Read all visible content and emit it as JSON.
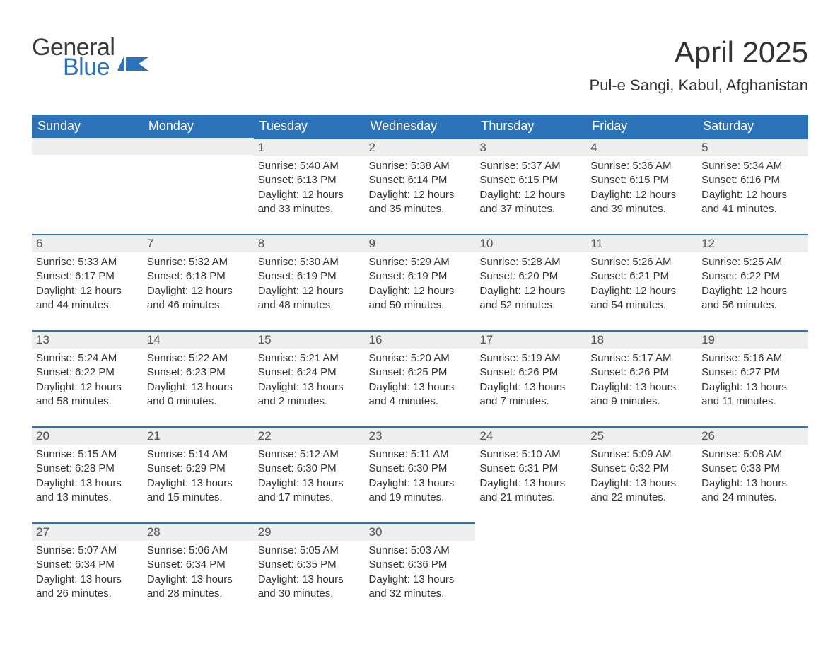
{
  "logo": {
    "text1": "General",
    "text2": "Blue",
    "accent_color": "#2b72b8"
  },
  "title": "April 2025",
  "location": "Pul-e Sangi, Kabul, Afghanistan",
  "colors": {
    "header_bg": "#2b72b8",
    "header_text": "#ffffff",
    "daynum_bg": "#eeeeee",
    "daynum_border": "#2b72b8",
    "body_text": "#333333"
  },
  "day_headers": [
    "Sunday",
    "Monday",
    "Tuesday",
    "Wednesday",
    "Thursday",
    "Friday",
    "Saturday"
  ],
  "weeks": [
    [
      {
        "num": "",
        "sunrise": "",
        "sunset": "",
        "daylight1": "",
        "daylight2": ""
      },
      {
        "num": "",
        "sunrise": "",
        "sunset": "",
        "daylight1": "",
        "daylight2": ""
      },
      {
        "num": "1",
        "sunrise": "Sunrise: 5:40 AM",
        "sunset": "Sunset: 6:13 PM",
        "daylight1": "Daylight: 12 hours",
        "daylight2": "and 33 minutes."
      },
      {
        "num": "2",
        "sunrise": "Sunrise: 5:38 AM",
        "sunset": "Sunset: 6:14 PM",
        "daylight1": "Daylight: 12 hours",
        "daylight2": "and 35 minutes."
      },
      {
        "num": "3",
        "sunrise": "Sunrise: 5:37 AM",
        "sunset": "Sunset: 6:15 PM",
        "daylight1": "Daylight: 12 hours",
        "daylight2": "and 37 minutes."
      },
      {
        "num": "4",
        "sunrise": "Sunrise: 5:36 AM",
        "sunset": "Sunset: 6:15 PM",
        "daylight1": "Daylight: 12 hours",
        "daylight2": "and 39 minutes."
      },
      {
        "num": "5",
        "sunrise": "Sunrise: 5:34 AM",
        "sunset": "Sunset: 6:16 PM",
        "daylight1": "Daylight: 12 hours",
        "daylight2": "and 41 minutes."
      }
    ],
    [
      {
        "num": "6",
        "sunrise": "Sunrise: 5:33 AM",
        "sunset": "Sunset: 6:17 PM",
        "daylight1": "Daylight: 12 hours",
        "daylight2": "and 44 minutes."
      },
      {
        "num": "7",
        "sunrise": "Sunrise: 5:32 AM",
        "sunset": "Sunset: 6:18 PM",
        "daylight1": "Daylight: 12 hours",
        "daylight2": "and 46 minutes."
      },
      {
        "num": "8",
        "sunrise": "Sunrise: 5:30 AM",
        "sunset": "Sunset: 6:19 PM",
        "daylight1": "Daylight: 12 hours",
        "daylight2": "and 48 minutes."
      },
      {
        "num": "9",
        "sunrise": "Sunrise: 5:29 AM",
        "sunset": "Sunset: 6:19 PM",
        "daylight1": "Daylight: 12 hours",
        "daylight2": "and 50 minutes."
      },
      {
        "num": "10",
        "sunrise": "Sunrise: 5:28 AM",
        "sunset": "Sunset: 6:20 PM",
        "daylight1": "Daylight: 12 hours",
        "daylight2": "and 52 minutes."
      },
      {
        "num": "11",
        "sunrise": "Sunrise: 5:26 AM",
        "sunset": "Sunset: 6:21 PM",
        "daylight1": "Daylight: 12 hours",
        "daylight2": "and 54 minutes."
      },
      {
        "num": "12",
        "sunrise": "Sunrise: 5:25 AM",
        "sunset": "Sunset: 6:22 PM",
        "daylight1": "Daylight: 12 hours",
        "daylight2": "and 56 minutes."
      }
    ],
    [
      {
        "num": "13",
        "sunrise": "Sunrise: 5:24 AM",
        "sunset": "Sunset: 6:22 PM",
        "daylight1": "Daylight: 12 hours",
        "daylight2": "and 58 minutes."
      },
      {
        "num": "14",
        "sunrise": "Sunrise: 5:22 AM",
        "sunset": "Sunset: 6:23 PM",
        "daylight1": "Daylight: 13 hours",
        "daylight2": "and 0 minutes."
      },
      {
        "num": "15",
        "sunrise": "Sunrise: 5:21 AM",
        "sunset": "Sunset: 6:24 PM",
        "daylight1": "Daylight: 13 hours",
        "daylight2": "and 2 minutes."
      },
      {
        "num": "16",
        "sunrise": "Sunrise: 5:20 AM",
        "sunset": "Sunset: 6:25 PM",
        "daylight1": "Daylight: 13 hours",
        "daylight2": "and 4 minutes."
      },
      {
        "num": "17",
        "sunrise": "Sunrise: 5:19 AM",
        "sunset": "Sunset: 6:26 PM",
        "daylight1": "Daylight: 13 hours",
        "daylight2": "and 7 minutes."
      },
      {
        "num": "18",
        "sunrise": "Sunrise: 5:17 AM",
        "sunset": "Sunset: 6:26 PM",
        "daylight1": "Daylight: 13 hours",
        "daylight2": "and 9 minutes."
      },
      {
        "num": "19",
        "sunrise": "Sunrise: 5:16 AM",
        "sunset": "Sunset: 6:27 PM",
        "daylight1": "Daylight: 13 hours",
        "daylight2": "and 11 minutes."
      }
    ],
    [
      {
        "num": "20",
        "sunrise": "Sunrise: 5:15 AM",
        "sunset": "Sunset: 6:28 PM",
        "daylight1": "Daylight: 13 hours",
        "daylight2": "and 13 minutes."
      },
      {
        "num": "21",
        "sunrise": "Sunrise: 5:14 AM",
        "sunset": "Sunset: 6:29 PM",
        "daylight1": "Daylight: 13 hours",
        "daylight2": "and 15 minutes."
      },
      {
        "num": "22",
        "sunrise": "Sunrise: 5:12 AM",
        "sunset": "Sunset: 6:30 PM",
        "daylight1": "Daylight: 13 hours",
        "daylight2": "and 17 minutes."
      },
      {
        "num": "23",
        "sunrise": "Sunrise: 5:11 AM",
        "sunset": "Sunset: 6:30 PM",
        "daylight1": "Daylight: 13 hours",
        "daylight2": "and 19 minutes."
      },
      {
        "num": "24",
        "sunrise": "Sunrise: 5:10 AM",
        "sunset": "Sunset: 6:31 PM",
        "daylight1": "Daylight: 13 hours",
        "daylight2": "and 21 minutes."
      },
      {
        "num": "25",
        "sunrise": "Sunrise: 5:09 AM",
        "sunset": "Sunset: 6:32 PM",
        "daylight1": "Daylight: 13 hours",
        "daylight2": "and 22 minutes."
      },
      {
        "num": "26",
        "sunrise": "Sunrise: 5:08 AM",
        "sunset": "Sunset: 6:33 PM",
        "daylight1": "Daylight: 13 hours",
        "daylight2": "and 24 minutes."
      }
    ],
    [
      {
        "num": "27",
        "sunrise": "Sunrise: 5:07 AM",
        "sunset": "Sunset: 6:34 PM",
        "daylight1": "Daylight: 13 hours",
        "daylight2": "and 26 minutes."
      },
      {
        "num": "28",
        "sunrise": "Sunrise: 5:06 AM",
        "sunset": "Sunset: 6:34 PM",
        "daylight1": "Daylight: 13 hours",
        "daylight2": "and 28 minutes."
      },
      {
        "num": "29",
        "sunrise": "Sunrise: 5:05 AM",
        "sunset": "Sunset: 6:35 PM",
        "daylight1": "Daylight: 13 hours",
        "daylight2": "and 30 minutes."
      },
      {
        "num": "30",
        "sunrise": "Sunrise: 5:03 AM",
        "sunset": "Sunset: 6:36 PM",
        "daylight1": "Daylight: 13 hours",
        "daylight2": "and 32 minutes."
      },
      {
        "num": "",
        "sunrise": "",
        "sunset": "",
        "daylight1": "",
        "daylight2": ""
      },
      {
        "num": "",
        "sunrise": "",
        "sunset": "",
        "daylight1": "",
        "daylight2": ""
      },
      {
        "num": "",
        "sunrise": "",
        "sunset": "",
        "daylight1": "",
        "daylight2": ""
      }
    ]
  ]
}
